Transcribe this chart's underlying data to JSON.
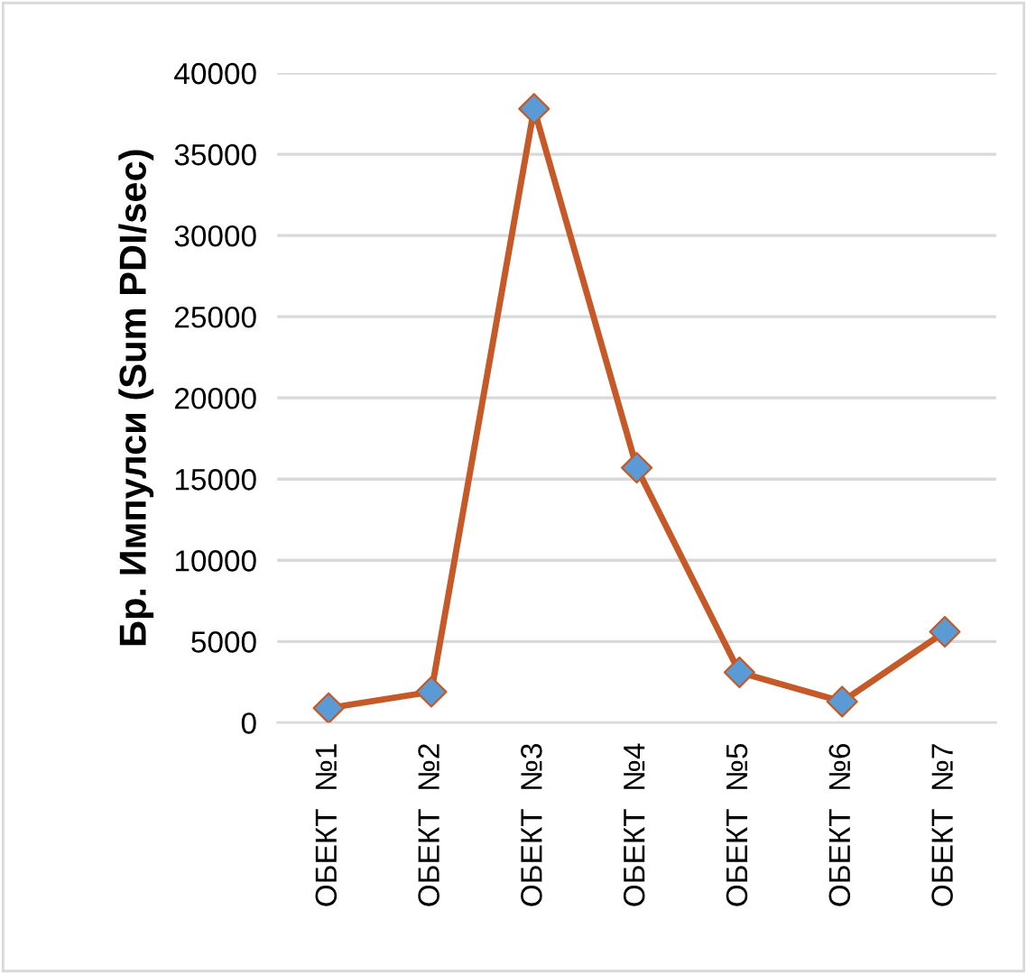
{
  "chart_data": {
    "type": "line",
    "ylabel": "Бр. Импулси (Sum PDI/sec)",
    "categories": [
      "ОБЕКТ  №1",
      "ОБЕКТ  №2",
      "ОБЕКТ  №3",
      "ОБЕКТ  №4",
      "ОБЕКТ  №5",
      "ОБЕКТ  №6",
      "ОБЕКТ  №7"
    ],
    "series": [
      {
        "color": "#c55a28",
        "colors": [
          "#5b9bd5",
          "#5b9bd5",
          "#5b9bd5",
          "#5b9bd5",
          "#5b9bd5",
          "#5b9bd5",
          "#5b9bd5"
        ],
        "values": [
          900,
          1900,
          37800,
          15700,
          3100,
          1300,
          5600
        ]
      }
    ],
    "ylim": [
      0,
      40000
    ],
    "yticks": [
      0,
      5000,
      10000,
      15000,
      20000,
      25000,
      30000,
      35000,
      40000
    ],
    "grid": "y",
    "marker": "diamond",
    "line_style": "solid"
  }
}
